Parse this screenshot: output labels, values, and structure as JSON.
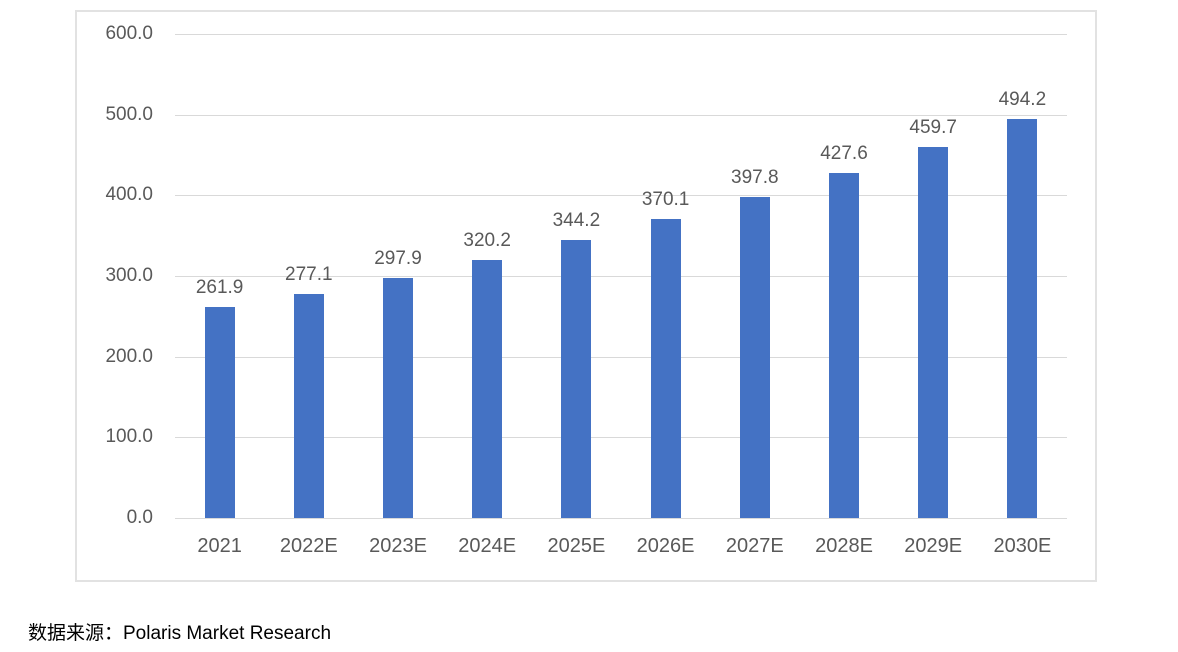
{
  "chart_data": {
    "type": "bar",
    "categories": [
      "2021",
      "2022E",
      "2023E",
      "2024E",
      "2025E",
      "2026E",
      "2027E",
      "2028E",
      "2029E",
      "2030E"
    ],
    "values": [
      261.9,
      277.1,
      297.9,
      320.2,
      344.2,
      370.1,
      397.8,
      427.6,
      459.7,
      494.2
    ],
    "title": "",
    "xlabel": "",
    "ylabel": "",
    "ylim": [
      0,
      600
    ],
    "ytick_step": 100,
    "ytick_labels": [
      "0.0",
      "100.0",
      "200.0",
      "300.0",
      "400.0",
      "500.0",
      "600.0"
    ],
    "grid": true,
    "legend": false,
    "data_labels": [
      "261.9",
      "277.1",
      "297.9",
      "320.2",
      "344.2",
      "370.1",
      "397.8",
      "427.6",
      "459.7",
      "494.2"
    ],
    "colors": {
      "bar": "#4472c4",
      "gridline": "#d9d9d9",
      "axis_text": "#595959",
      "data_label_text": "#595959",
      "frame_border": "#e2e2e2"
    }
  },
  "source": {
    "text": "数据来源：Polaris Market Research"
  }
}
